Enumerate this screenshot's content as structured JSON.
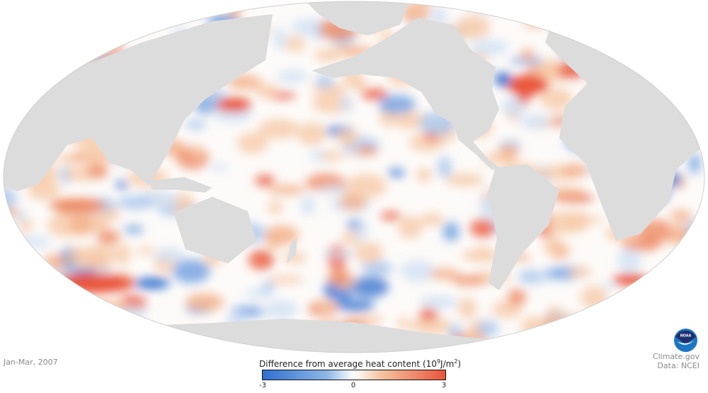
{
  "map": {
    "title_prefix": "Difference from average heat content",
    "unit_base": "(10",
    "unit_exp": "9",
    "unit_mid": "J/m",
    "unit_exp2": "2",
    "unit_close": ")",
    "legend_ticks": [
      "-3",
      "0",
      "3"
    ],
    "legend_min": -3,
    "legend_max": 3,
    "colors": {
      "low": "#2f6fcf",
      "mid": "#ffffff",
      "high": "#e9553a",
      "land": "#dcdcdc"
    }
  },
  "date_label": "Jan-Mar, 2007",
  "credit": {
    "site": "Climate.gov",
    "data": "Data: NCEI",
    "logo_text": "NOAA"
  }
}
